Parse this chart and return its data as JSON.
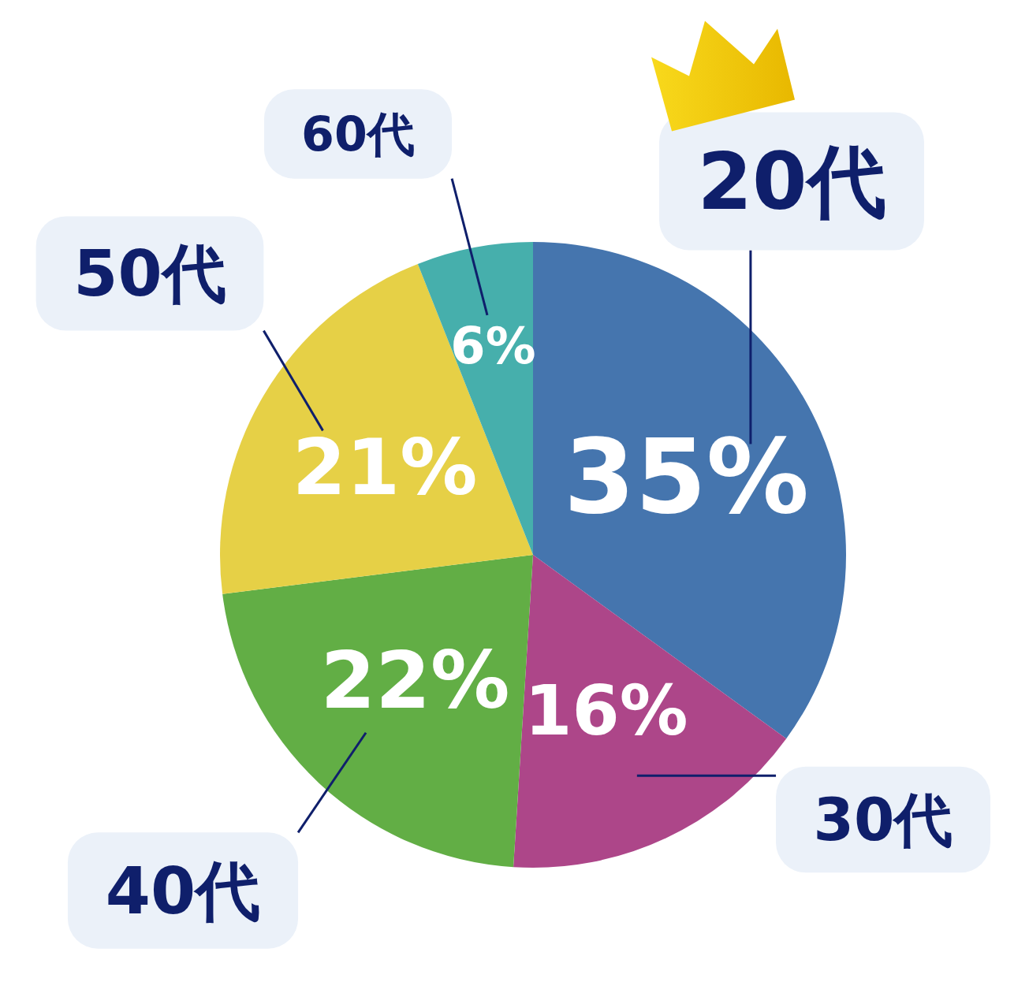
{
  "chart_data": {
    "type": "pie",
    "categories": [
      "20代",
      "30代",
      "40代",
      "50代",
      "60代"
    ],
    "values": [
      35,
      16,
      22,
      21,
      6
    ],
    "colors": [
      "#4575ae",
      "#ad4689",
      "#62ae45",
      "#e6d046",
      "#46afac"
    ],
    "value_labels": [
      "35%",
      "16%",
      "22%",
      "21%",
      "6%"
    ]
  }
}
